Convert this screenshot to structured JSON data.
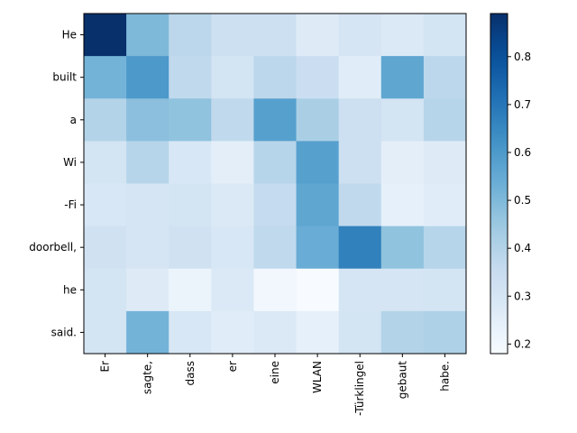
{
  "chart_data": {
    "type": "heatmap",
    "x_tokens": [
      "Er",
      "sagte,",
      "dass",
      "er",
      "eine",
      "WLAN",
      "-Türklingel",
      "gebaut",
      "habe."
    ],
    "y_tokens": [
      "He",
      "built",
      "a",
      "Wi",
      "-Fi",
      "doorbell,",
      "he",
      "said."
    ],
    "values": [
      [
        0.89,
        0.5,
        0.38,
        0.33,
        0.33,
        0.27,
        0.3,
        0.28,
        0.31
      ],
      [
        0.52,
        0.6,
        0.37,
        0.31,
        0.38,
        0.34,
        0.26,
        0.56,
        0.38
      ],
      [
        0.4,
        0.48,
        0.47,
        0.37,
        0.58,
        0.42,
        0.33,
        0.31,
        0.39
      ],
      [
        0.31,
        0.39,
        0.29,
        0.25,
        0.39,
        0.58,
        0.33,
        0.25,
        0.27
      ],
      [
        0.29,
        0.3,
        0.31,
        0.28,
        0.36,
        0.56,
        0.37,
        0.24,
        0.26
      ],
      [
        0.32,
        0.3,
        0.32,
        0.29,
        0.37,
        0.54,
        0.67,
        0.47,
        0.39
      ],
      [
        0.31,
        0.27,
        0.22,
        0.28,
        0.2,
        0.18,
        0.3,
        0.3,
        0.31
      ],
      [
        0.31,
        0.52,
        0.29,
        0.26,
        0.28,
        0.24,
        0.31,
        0.4,
        0.41
      ]
    ],
    "colormap": "Blues",
    "vmin": 0.18,
    "vmax": 0.89,
    "colorbar": {
      "ticks": [
        0.2,
        0.3,
        0.4,
        0.5,
        0.6,
        0.7,
        0.8
      ],
      "tick_labels": [
        "0.2",
        "0.3",
        "0.4",
        "0.5",
        "0.6",
        "0.7",
        "0.8"
      ]
    },
    "grid": false
  }
}
